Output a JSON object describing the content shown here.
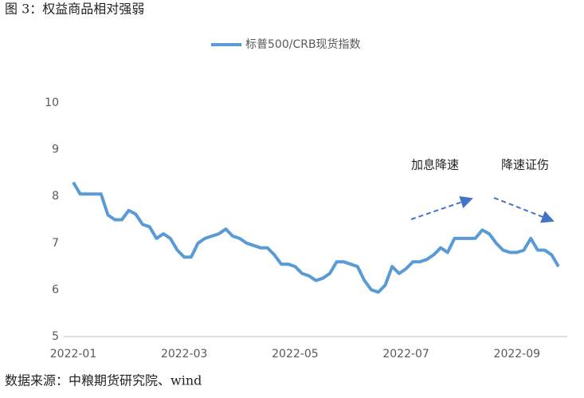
{
  "chart_data": {
    "type": "line",
    "title": "图 3：权益商品相对强弱",
    "source": "数据来源：中粮期货研究院、wind",
    "annotations": [
      "加息降速",
      "降速证伤"
    ],
    "categories": [
      "2022-01",
      null,
      null,
      null,
      null,
      null,
      null,
      null,
      null,
      null,
      null,
      null,
      null,
      null,
      null,
      null,
      "2022-03",
      null,
      null,
      null,
      null,
      null,
      null,
      null,
      null,
      null,
      null,
      null,
      null,
      null,
      null,
      null,
      "2022-05",
      null,
      null,
      null,
      null,
      null,
      null,
      null,
      null,
      null,
      null,
      null,
      null,
      null,
      null,
      null,
      "2022-07",
      null,
      null,
      null,
      null,
      null,
      null,
      null,
      null,
      null,
      null,
      null,
      null,
      null,
      null,
      null,
      "2022-09",
      null,
      null,
      null,
      null,
      null,
      null
    ],
    "series": [
      {
        "name": "标普500/CRB现货指数",
        "color": "#5b9bd5",
        "values": [
          8.3,
          8.05,
          8.05,
          8.05,
          8.05,
          7.6,
          7.5,
          7.5,
          7.7,
          7.62,
          7.4,
          7.35,
          7.1,
          7.2,
          7.1,
          6.85,
          6.7,
          6.7,
          7.0,
          7.1,
          7.15,
          7.2,
          7.3,
          7.15,
          7.1,
          7.0,
          6.95,
          6.9,
          6.9,
          6.75,
          6.55,
          6.55,
          6.5,
          6.35,
          6.3,
          6.2,
          6.25,
          6.35,
          6.6,
          6.6,
          6.55,
          6.5,
          6.2,
          6.0,
          5.95,
          6.1,
          6.5,
          6.35,
          6.45,
          6.6,
          6.6,
          6.65,
          6.75,
          6.9,
          6.8,
          7.1,
          7.1,
          7.1,
          7.1,
          7.28,
          7.2,
          7.0,
          6.85,
          6.8,
          6.8,
          6.85,
          7.1,
          6.85,
          6.85,
          6.75,
          6.5
        ]
      }
    ],
    "ylim": [
      5,
      10
    ],
    "yticks": [
      5,
      6,
      7,
      8,
      9,
      10
    ],
    "grid": false,
    "legend": "top"
  }
}
